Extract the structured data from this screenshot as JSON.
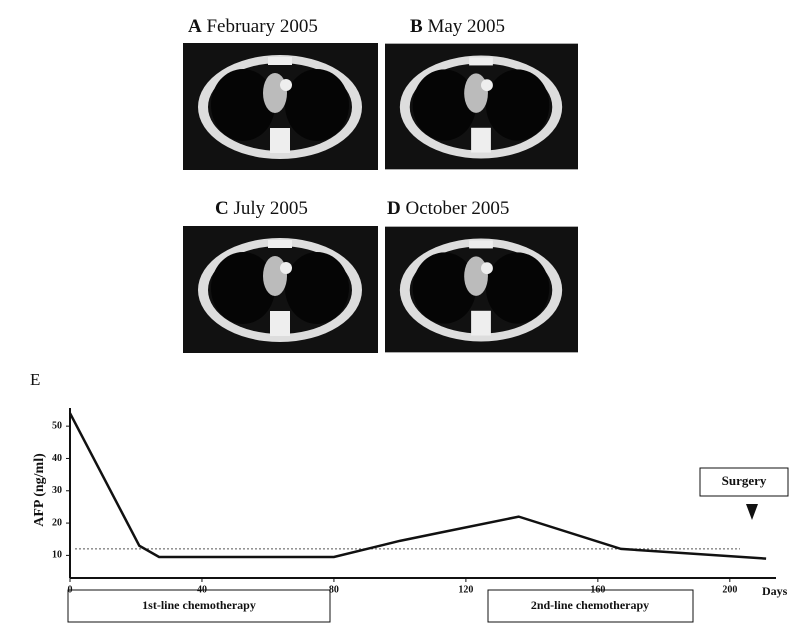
{
  "panels": [
    {
      "letter": "A",
      "label": "February 2005"
    },
    {
      "letter": "B",
      "label": "May 2005"
    },
    {
      "letter": "C",
      "label": "July 2005"
    },
    {
      "letter": "D",
      "label": "October 2005"
    }
  ],
  "chart_data": {
    "type": "line",
    "panel_label": "E",
    "ylabel": "AFP (ng/ml)",
    "xlabel": "Days",
    "x": [
      0,
      21,
      27,
      80,
      100,
      112,
      136,
      167,
      211
    ],
    "series": [
      {
        "color": "#111111",
        "values": [
          54,
          13,
          9.5,
          9.5,
          14.5,
          17,
          22,
          12,
          9
        ]
      }
    ],
    "reference_line": 12,
    "xlim": [
      0,
      214
    ],
    "ylim": [
      3,
      55
    ],
    "xticks": [
      0,
      40,
      80,
      120,
      160,
      200
    ],
    "yticks": [
      10,
      20,
      30,
      40,
      50
    ],
    "annotations": [
      "Surgery",
      "1st-line chemotherapy",
      "2nd-line chemotherapy"
    ]
  }
}
